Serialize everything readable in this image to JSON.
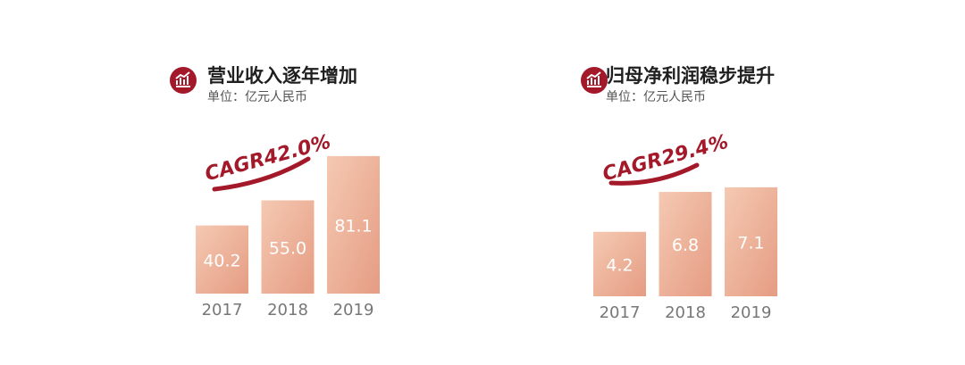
{
  "chart_data": [
    {
      "type": "bar",
      "title": "营业收入逐年增加",
      "subtitle": "单位：亿元人民币",
      "annotation": "CAGR42.0%",
      "categories": [
        "2017",
        "2018",
        "2019"
      ],
      "values": [
        40.2,
        55.0,
        81.1
      ],
      "value_labels": [
        "40.2",
        "55.0",
        "81.1"
      ],
      "color": "#e59c83",
      "ylim": [
        0,
        90
      ]
    },
    {
      "type": "bar",
      "title": "归母净利润稳步提升",
      "subtitle": "单位：亿元人民币",
      "annotation": "CAGR29.4%",
      "categories": [
        "2017",
        "2018",
        "2019"
      ],
      "values": [
        4.2,
        6.8,
        7.1
      ],
      "color": "#e59c83",
      "ylim": [
        0,
        8
      ]
    }
  ]
}
